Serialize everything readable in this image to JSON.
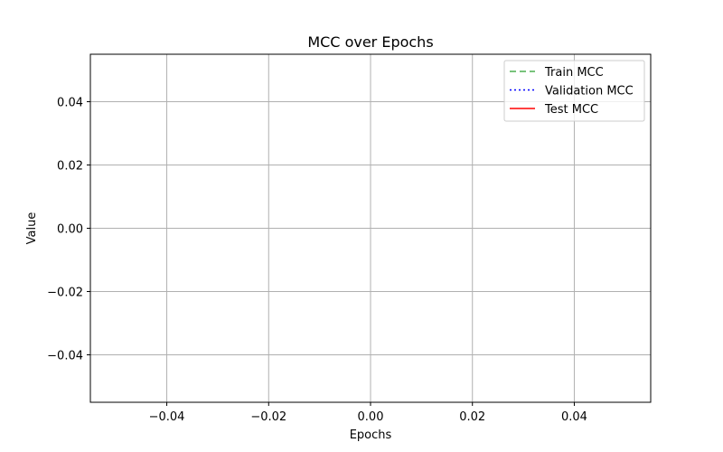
{
  "chart_data": {
    "type": "line",
    "title": "MCC over Epochs",
    "xlabel": "Epochs",
    "ylabel": "Value",
    "xlim": [
      -0.055,
      0.055
    ],
    "ylim": [
      -0.055,
      0.055
    ],
    "xticks": [
      -0.04,
      -0.02,
      0.0,
      0.02,
      0.04
    ],
    "yticks": [
      -0.04,
      -0.02,
      0.0,
      0.02,
      0.04
    ],
    "xtick_labels": [
      "−0.04",
      "−0.02",
      "0.00",
      "0.02",
      "0.04"
    ],
    "ytick_labels": [
      "−0.04",
      "−0.02",
      "0.00",
      "0.02",
      "0.04"
    ],
    "grid": true,
    "legend_position": "top-right",
    "series": [
      {
        "name": "Train MCC",
        "x": [],
        "y": [],
        "color": "#4caf50",
        "linestyle": "dashed"
      },
      {
        "name": "Validation MCC",
        "x": [],
        "y": [],
        "color": "#0000ff",
        "linestyle": "dotted"
      },
      {
        "name": "Test MCC",
        "x": [],
        "y": [],
        "color": "#ff0000",
        "linestyle": "solid"
      }
    ]
  }
}
